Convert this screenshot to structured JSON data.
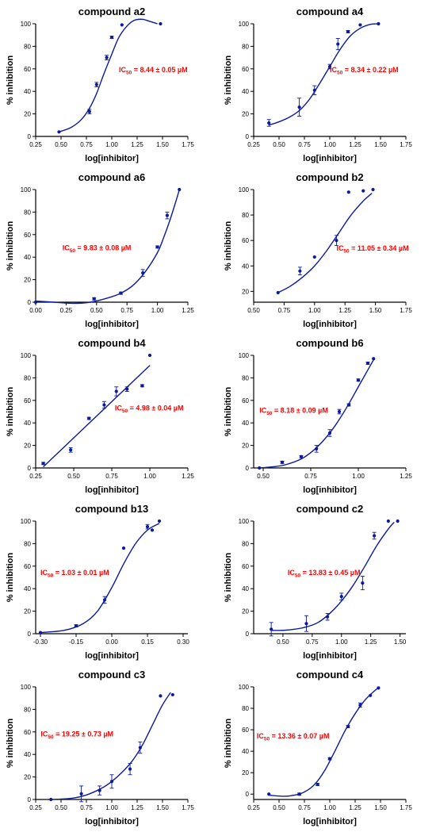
{
  "page": {
    "data_color": "#0b1a9c",
    "annotation_color": "#ff0000",
    "axis_color": "#000000"
  },
  "chart_data": [
    {
      "type": "scatter",
      "title": "compound a2",
      "xlabel": "log[inhibitor]",
      "ylabel": "% inhibition",
      "xlim": [
        0.25,
        1.75
      ],
      "ylim": [
        0,
        100
      ],
      "xticks": [
        "0.25",
        "0.50",
        "0.75",
        "1.00",
        "1.25",
        "1.50",
        "1.75"
      ],
      "yticks": [
        "0",
        "20",
        "40",
        "60",
        "80",
        "100"
      ],
      "annotation": {
        "prefix": "IC",
        "sub": "50",
        "text": " = 8.44 ± 0.05 µM",
        "x": 1.07,
        "y": 57
      },
      "points": [
        {
          "x": 0.48,
          "y": 4,
          "err": 0
        },
        {
          "x": 0.78,
          "y": 22,
          "err": 2
        },
        {
          "x": 0.85,
          "y": 46,
          "err": 2
        },
        {
          "x": 0.95,
          "y": 70,
          "err": 2
        },
        {
          "x": 1.0,
          "y": 88,
          "err": 1
        },
        {
          "x": 1.1,
          "y": 99,
          "err": 0
        },
        {
          "x": 1.48,
          "y": 100,
          "err": 0
        }
      ],
      "fit": [
        [
          0.48,
          4
        ],
        [
          0.6,
          8
        ],
        [
          0.7,
          15
        ],
        [
          0.78,
          25
        ],
        [
          0.85,
          38
        ],
        [
          0.92,
          55
        ],
        [
          1.0,
          73
        ],
        [
          1.07,
          88
        ],
        [
          1.15,
          98
        ],
        [
          1.22,
          103
        ],
        [
          1.3,
          104
        ],
        [
          1.38,
          102
        ],
        [
          1.45,
          100
        ]
      ]
    },
    {
      "type": "scatter",
      "title": "compound a4",
      "xlabel": "log[inhibitor]",
      "ylabel": "% inhibition",
      "xlim": [
        0.25,
        1.75
      ],
      "ylim": [
        0,
        100
      ],
      "xticks": [
        "0.25",
        "0.50",
        "0.75",
        "1.00",
        "1.25",
        "1.50",
        "1.75"
      ],
      "yticks": [
        "0",
        "20",
        "40",
        "60",
        "80",
        "100"
      ],
      "annotation": {
        "prefix": "IC",
        "sub": "50",
        "text": " = 8.34 ± 0.22 µM",
        "x": 1.0,
        "y": 57
      },
      "points": [
        {
          "x": 0.4,
          "y": 12,
          "err": 3
        },
        {
          "x": 0.7,
          "y": 26,
          "err": 8
        },
        {
          "x": 0.85,
          "y": 41,
          "err": 4
        },
        {
          "x": 1.0,
          "y": 62,
          "err": 2
        },
        {
          "x": 1.08,
          "y": 82,
          "err": 5
        },
        {
          "x": 1.18,
          "y": 93,
          "err": 1
        },
        {
          "x": 1.3,
          "y": 99,
          "err": 0
        },
        {
          "x": 1.48,
          "y": 100,
          "err": 0
        }
      ],
      "fit": [
        [
          0.4,
          10
        ],
        [
          0.5,
          13
        ],
        [
          0.6,
          17
        ],
        [
          0.7,
          23
        ],
        [
          0.8,
          33
        ],
        [
          0.9,
          47
        ],
        [
          1.0,
          62
        ],
        [
          1.1,
          77
        ],
        [
          1.2,
          89
        ],
        [
          1.3,
          96
        ],
        [
          1.4,
          99.5
        ],
        [
          1.48,
          100
        ]
      ]
    },
    {
      "type": "scatter",
      "title": "compound a6",
      "xlabel": "log[inhibitor]",
      "ylabel": "% inhibition",
      "xlim": [
        0,
        1.25
      ],
      "ylim": [
        0,
        100
      ],
      "xticks": [
        "0.00",
        "0.25",
        "0.50",
        "0.75",
        "1.00",
        "1.25"
      ],
      "yticks": [
        "0",
        "20",
        "40",
        "60",
        "80",
        "100"
      ],
      "annotation": {
        "prefix": "IC",
        "sub": "50",
        "text": " = 9.83 ± 0.08  µM",
        "x": 0.22,
        "y": 46
      },
      "points": [
        {
          "x": 0.0,
          "y": 0,
          "err": 0
        },
        {
          "x": 0.48,
          "y": 3,
          "err": 1
        },
        {
          "x": 0.7,
          "y": 8,
          "err": 1
        },
        {
          "x": 0.88,
          "y": 26,
          "err": 3
        },
        {
          "x": 1.0,
          "y": 49,
          "err": 1
        },
        {
          "x": 1.08,
          "y": 77,
          "err": 3
        },
        {
          "x": 1.18,
          "y": 100,
          "err": 0
        }
      ],
      "fit": [
        [
          0.0,
          1
        ],
        [
          0.15,
          0
        ],
        [
          0.3,
          -1
        ],
        [
          0.45,
          0
        ],
        [
          0.6,
          4
        ],
        [
          0.7,
          8
        ],
        [
          0.8,
          15
        ],
        [
          0.9,
          27
        ],
        [
          1.0,
          44
        ],
        [
          1.05,
          57
        ],
        [
          1.1,
          72
        ],
        [
          1.15,
          89
        ],
        [
          1.18,
          100
        ]
      ]
    },
    {
      "type": "scatter",
      "title": "compound b2",
      "xlabel": "log[inhibitor]",
      "ylabel": "% inhibition",
      "xlim": [
        0.5,
        1.75
      ],
      "ylim": [
        11.5,
        100
      ],
      "xticks": [
        "0.50",
        "0.75",
        "1.00",
        "1.25",
        "1.50",
        "1.75"
      ],
      "yticks": [
        "20",
        "40",
        "60",
        "80",
        "100"
      ],
      "annotation": {
        "prefix": "IC",
        "sub": "50",
        "text": " = 11.05 ± 0.34 µM",
        "x": 1.18,
        "y": 52
      },
      "points": [
        {
          "x": 0.7,
          "y": 19,
          "err": 0
        },
        {
          "x": 0.88,
          "y": 36,
          "err": 3
        },
        {
          "x": 1.0,
          "y": 47,
          "err": 0
        },
        {
          "x": 1.18,
          "y": 60,
          "err": 4
        },
        {
          "x": 1.28,
          "y": 98,
          "err": 0
        },
        {
          "x": 1.4,
          "y": 99,
          "err": 0
        },
        {
          "x": 1.48,
          "y": 100,
          "err": 0
        }
      ],
      "fit": [
        [
          0.7,
          19
        ],
        [
          0.8,
          24
        ],
        [
          0.9,
          31
        ],
        [
          1.0,
          40
        ],
        [
          1.1,
          52
        ],
        [
          1.2,
          66
        ],
        [
          1.3,
          80
        ],
        [
          1.4,
          91
        ],
        [
          1.47,
          97
        ]
      ]
    },
    {
      "type": "scatter",
      "title": "compound b4",
      "xlabel": "log[inhibitor]",
      "ylabel": "% inhibition",
      "xlim": [
        0.25,
        1.25
      ],
      "ylim": [
        0,
        100
      ],
      "xticks": [
        "0.25",
        "0.50",
        "0.75",
        "1.00",
        "1.25"
      ],
      "yticks": [
        "0",
        "20",
        "40",
        "60",
        "80",
        "100"
      ],
      "annotation": {
        "prefix": "IC",
        "sub": "50",
        "text": " = 4.98 ± 0.04 µM",
        "x": 0.77,
        "y": 51
      },
      "points": [
        {
          "x": 0.3,
          "y": 4,
          "err": 1
        },
        {
          "x": 0.48,
          "y": 16,
          "err": 2
        },
        {
          "x": 0.6,
          "y": 44,
          "err": 1
        },
        {
          "x": 0.7,
          "y": 56,
          "err": 3
        },
        {
          "x": 0.78,
          "y": 68,
          "err": 4
        },
        {
          "x": 0.85,
          "y": 70,
          "err": 2
        },
        {
          "x": 0.95,
          "y": 73,
          "err": 1
        },
        {
          "x": 1.0,
          "y": 100,
          "err": 0
        }
      ],
      "fit": [
        [
          0.3,
          1
        ],
        [
          1.0,
          91
        ]
      ]
    },
    {
      "type": "scatter",
      "title": "compound b6",
      "xlabel": "log[inhibitor]",
      "ylabel": "% inhibition",
      "xlim": [
        0.45,
        1.25
      ],
      "ylim": [
        0,
        100
      ],
      "xticks": [
        "0.50",
        "0.75",
        "1.00",
        "1.25"
      ],
      "yticks": [
        "0",
        "20",
        "40",
        "60",
        "80",
        "100"
      ],
      "annotation": {
        "prefix": "IC",
        "sub": "50",
        "text": " = 8.18 ± 0.09 µM",
        "x": 0.48,
        "y": 49
      },
      "points": [
        {
          "x": 0.48,
          "y": 0,
          "err": 0
        },
        {
          "x": 0.6,
          "y": 5,
          "err": 1
        },
        {
          "x": 0.7,
          "y": 10,
          "err": 1
        },
        {
          "x": 0.78,
          "y": 17,
          "err": 3
        },
        {
          "x": 0.85,
          "y": 31,
          "err": 3
        },
        {
          "x": 0.9,
          "y": 50,
          "err": 2
        },
        {
          "x": 0.95,
          "y": 56,
          "err": 1
        },
        {
          "x": 1.0,
          "y": 78,
          "err": 1
        },
        {
          "x": 1.05,
          "y": 93,
          "err": 1
        },
        {
          "x": 1.08,
          "y": 97,
          "err": 0
        }
      ],
      "fit": [
        [
          0.48,
          0
        ],
        [
          0.55,
          1
        ],
        [
          0.62,
          3
        ],
        [
          0.7,
          8
        ],
        [
          0.76,
          15
        ],
        [
          0.82,
          25
        ],
        [
          0.88,
          38
        ],
        [
          0.94,
          54
        ],
        [
          1.0,
          72
        ],
        [
          1.05,
          87
        ],
        [
          1.08,
          96
        ]
      ]
    },
    {
      "type": "scatter",
      "title": "compound b13",
      "xlabel": "log[inhibitor]",
      "ylabel": "% inhibition",
      "xlim": [
        -0.32,
        0.32
      ],
      "ylim": [
        0,
        100
      ],
      "xticks": [
        "-0.30",
        "-0.15",
        "0.00",
        "0.15",
        "0.30"
      ],
      "yticks": [
        "0",
        "20",
        "40",
        "60",
        "80",
        "100"
      ],
      "annotation": {
        "prefix": "IC",
        "sub": "50",
        "text": " = 1.03 ± 0.01 µM",
        "x": -0.3,
        "y": 52
      },
      "points": [
        {
          "x": -0.3,
          "y": 1,
          "err": 0
        },
        {
          "x": -0.15,
          "y": 7,
          "err": 1
        },
        {
          "x": -0.03,
          "y": 30,
          "err": 3
        },
        {
          "x": 0.05,
          "y": 76,
          "err": 0
        },
        {
          "x": 0.15,
          "y": 95,
          "err": 2
        },
        {
          "x": 0.17,
          "y": 92,
          "err": 0
        },
        {
          "x": 0.2,
          "y": 100,
          "err": 0
        }
      ],
      "fit": [
        [
          -0.3,
          1
        ],
        [
          -0.2,
          3
        ],
        [
          -0.12,
          9
        ],
        [
          -0.06,
          20
        ],
        [
          0.0,
          41
        ],
        [
          0.05,
          62
        ],
        [
          0.1,
          80
        ],
        [
          0.15,
          92
        ],
        [
          0.2,
          98
        ]
      ]
    },
    {
      "type": "scatter",
      "title": "compound c2",
      "xlabel": "log[inhibitor]",
      "ylabel": "% inhibition",
      "xlim": [
        0.25,
        1.55
      ],
      "ylim": [
        0,
        100
      ],
      "xticks": [
        "0.50",
        "0.75",
        "1.00",
        "1.25",
        "1.50"
      ],
      "yticks": [
        "0",
        "20",
        "40",
        "60",
        "80",
        "100"
      ],
      "annotation": {
        "prefix": "IC",
        "sub": "50",
        "text": " = 13.83 ± 0.45 µM",
        "x": 0.54,
        "y": 52
      },
      "points": [
        {
          "x": 0.4,
          "y": 4,
          "err": 6
        },
        {
          "x": 0.7,
          "y": 9,
          "err": 7
        },
        {
          "x": 0.88,
          "y": 15,
          "err": 3
        },
        {
          "x": 1.0,
          "y": 33,
          "err": 3
        },
        {
          "x": 1.18,
          "y": 45,
          "err": 6
        },
        {
          "x": 1.28,
          "y": 87,
          "err": 3
        },
        {
          "x": 1.4,
          "y": 100,
          "err": 0
        },
        {
          "x": 1.48,
          "y": 100,
          "err": 0
        }
      ],
      "fit": [
        [
          0.4,
          3
        ],
        [
          0.5,
          3
        ],
        [
          0.6,
          4
        ],
        [
          0.7,
          6
        ],
        [
          0.8,
          10
        ],
        [
          0.9,
          18
        ],
        [
          1.0,
          29
        ],
        [
          1.1,
          43
        ],
        [
          1.2,
          60
        ],
        [
          1.3,
          78
        ],
        [
          1.4,
          93
        ],
        [
          1.45,
          99
        ]
      ]
    },
    {
      "type": "scatter",
      "title": "compound c3",
      "xlabel": "log[inhibitor]",
      "ylabel": "% inhibition",
      "xlim": [
        0.25,
        1.75
      ],
      "ylim": [
        0,
        100
      ],
      "xticks": [
        "0.25",
        "0.50",
        "0.75",
        "1.00",
        "1.25",
        "1.50",
        "1.75"
      ],
      "yticks": [
        "0",
        "20",
        "40",
        "60",
        "80",
        "100"
      ],
      "annotation": {
        "prefix": "IC",
        "sub": "50",
        "text": " = 19.25 ± 0.73 µM",
        "x": 0.3,
        "y": 56
      },
      "points": [
        {
          "x": 0.4,
          "y": 0,
          "err": 0
        },
        {
          "x": 0.7,
          "y": 5,
          "err": 7
        },
        {
          "x": 0.88,
          "y": 8,
          "err": 4
        },
        {
          "x": 1.0,
          "y": 16,
          "err": 6
        },
        {
          "x": 1.18,
          "y": 27,
          "err": 5
        },
        {
          "x": 1.28,
          "y": 46,
          "err": 5
        },
        {
          "x": 1.48,
          "y": 92,
          "err": 0
        },
        {
          "x": 1.6,
          "y": 93,
          "err": 0
        }
      ],
      "fit": [
        [
          0.4,
          0
        ],
        [
          0.6,
          1
        ],
        [
          0.75,
          4
        ],
        [
          0.9,
          10
        ],
        [
          1.0,
          16
        ],
        [
          1.1,
          24
        ],
        [
          1.2,
          34
        ],
        [
          1.3,
          48
        ],
        [
          1.4,
          66
        ],
        [
          1.5,
          84
        ],
        [
          1.58,
          95
        ]
      ]
    },
    {
      "type": "scatter",
      "title": "compound c4",
      "xlabel": "log[inhibitor]",
      "ylabel": "% inhibition",
      "xlim": [
        0.25,
        1.75
      ],
      "ylim": [
        -5,
        100
      ],
      "xticks": [
        "0.25",
        "0.50",
        "0.75",
        "1.00",
        "1.25",
        "1.50",
        "1.75"
      ],
      "yticks": [
        "0",
        "20",
        "40",
        "60",
        "80",
        "100"
      ],
      "annotation": {
        "prefix": "IC",
        "sub": "50",
        "text": " = 13.36 ± 0.07 µM",
        "x": 0.28,
        "y": 52
      },
      "points": [
        {
          "x": 0.4,
          "y": 0,
          "err": 0
        },
        {
          "x": 0.7,
          "y": 0,
          "err": 1
        },
        {
          "x": 0.88,
          "y": 9,
          "err": 1
        },
        {
          "x": 1.0,
          "y": 33,
          "err": 1
        },
        {
          "x": 1.18,
          "y": 63,
          "err": 1
        },
        {
          "x": 1.3,
          "y": 83,
          "err": 2
        },
        {
          "x": 1.4,
          "y": 92,
          "err": 0
        },
        {
          "x": 1.48,
          "y": 99,
          "err": 0
        }
      ],
      "fit": [
        [
          0.4,
          -1
        ],
        [
          0.55,
          -2
        ],
        [
          0.65,
          -1
        ],
        [
          0.75,
          2
        ],
        [
          0.85,
          9
        ],
        [
          0.95,
          22
        ],
        [
          1.05,
          40
        ],
        [
          1.15,
          59
        ],
        [
          1.25,
          75
        ],
        [
          1.35,
          88
        ],
        [
          1.45,
          97
        ],
        [
          1.48,
          99
        ]
      ]
    }
  ]
}
